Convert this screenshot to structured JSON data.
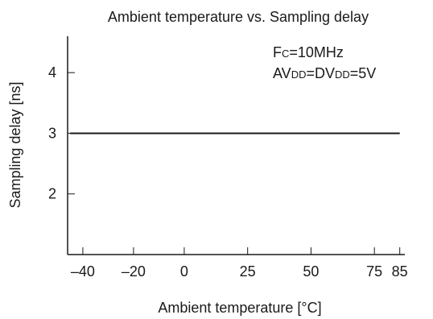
{
  "chart_data": {
    "type": "line",
    "title": "Ambient temperature vs. Sampling delay",
    "xlabel": "Ambient temperature [°C]",
    "ylabel": "Sampling delay [ns]",
    "x_ticks": [
      -40,
      -20,
      0,
      25,
      50,
      75,
      85
    ],
    "x_tick_labels": [
      "–40",
      "–20",
      "0",
      "25",
      "50",
      "75",
      "85"
    ],
    "y_ticks": [
      2,
      3,
      4
    ],
    "y_tick_labels": [
      "2",
      "3",
      "4"
    ],
    "xlim": [
      -46,
      87
    ],
    "ylim": [
      1.0,
      4.6
    ],
    "grid": false,
    "series": [
      {
        "x": [
          -45,
          85
        ],
        "y": [
          3.0,
          3.0
        ],
        "color": "#1a1a1a"
      }
    ],
    "annotations": [
      {
        "parts": [
          {
            "text": "F",
            "sub": false
          },
          {
            "text": "C",
            "sub": true
          },
          {
            "text": "=10MHz",
            "sub": false
          }
        ]
      },
      {
        "parts": [
          {
            "text": "AV",
            "sub": false
          },
          {
            "text": "DD",
            "sub": true
          },
          {
            "text": "=DV",
            "sub": false
          },
          {
            "text": "DD",
            "sub": true
          },
          {
            "text": "=5V",
            "sub": false
          }
        ]
      }
    ]
  }
}
